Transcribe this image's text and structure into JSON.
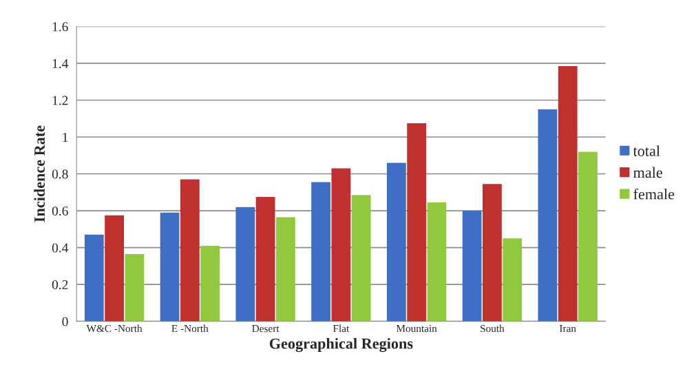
{
  "chart_data": {
    "type": "bar",
    "xlabel": "Geographical Regions",
    "ylabel": "Incidence Rate",
    "categories": [
      "W&C -North",
      "E -North",
      "Desert",
      "Flat",
      "Mountain",
      "South",
      "Iran"
    ],
    "series": [
      {
        "name": "total",
        "color": "#3f6fc4",
        "values": [
          0.47,
          0.59,
          0.62,
          0.755,
          0.86,
          0.6,
          1.15
        ]
      },
      {
        "name": "male",
        "color": "#c0302e",
        "values": [
          0.575,
          0.77,
          0.675,
          0.83,
          1.075,
          0.745,
          1.385
        ]
      },
      {
        "name": "female",
        "color": "#92c83e",
        "values": [
          0.365,
          0.41,
          0.565,
          0.685,
          0.645,
          0.45,
          0.92
        ]
      }
    ],
    "ylim": [
      0,
      1.6
    ],
    "yticks": [
      0,
      0.2,
      0.4,
      0.6,
      0.8,
      1,
      1.2,
      1.4,
      1.6
    ],
    "grid": "y",
    "legend": "right"
  }
}
